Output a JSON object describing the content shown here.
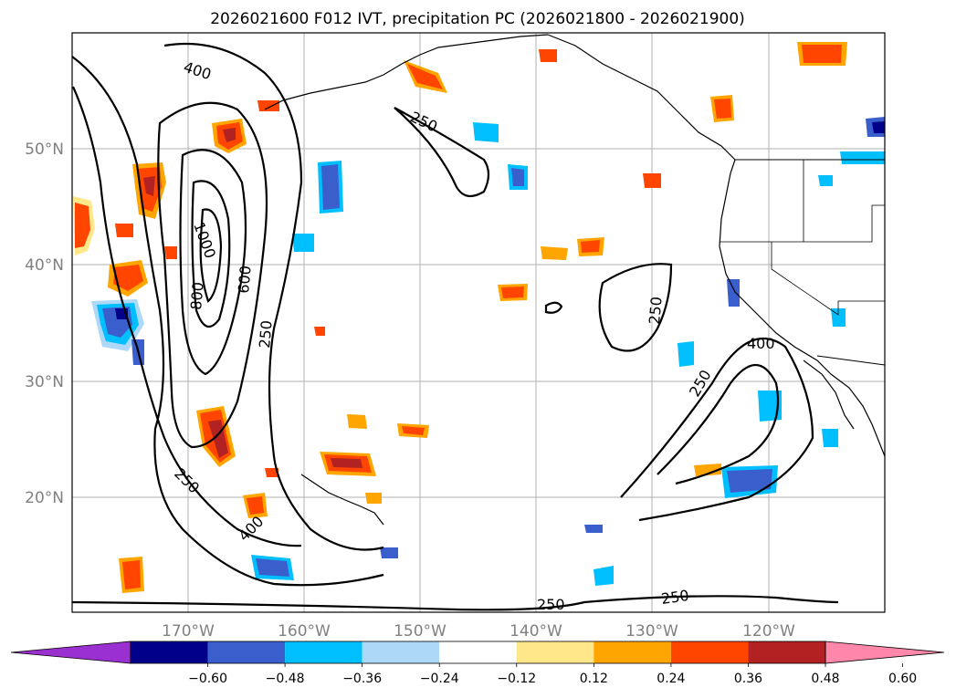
{
  "title": "2026021600 F012 IVT, precipitation PC (2026021800 - 2026021900)",
  "lat_labels": [
    "50°N",
    "40°N",
    "30°N",
    "20°N"
  ],
  "lon_labels": [
    "170°W",
    "160°W",
    "150°W",
    "140°W",
    "130°W",
    "120°W"
  ],
  "contour_labels": [
    "400",
    "250",
    "1000",
    "800",
    "600",
    "250",
    "250",
    "400",
    "250",
    "400",
    "250",
    "250",
    "250"
  ],
  "colorbar": {
    "ticks": [
      "−0.60",
      "−0.48",
      "−0.36",
      "−0.24",
      "−0.12",
      "0.12",
      "0.24",
      "0.36",
      "0.48",
      "0.60"
    ],
    "colors": [
      "#9b30d0",
      "#00008b",
      "#3a5fcd",
      "#00bfff",
      "#add8f7",
      "#ffffff",
      "#ffe78a",
      "#ffa500",
      "#ff4500",
      "#b22222",
      "#ff88aa"
    ]
  },
  "colors": {
    "pos_light": "#ffe78a",
    "pos_mid": "#ffa500",
    "pos_strong": "#ff4500",
    "pos_max": "#b22222",
    "neg_light": "#add8f7",
    "neg_mid": "#00bfff",
    "neg_strong": "#3a5fcd",
    "neg_max": "#00008b"
  }
}
